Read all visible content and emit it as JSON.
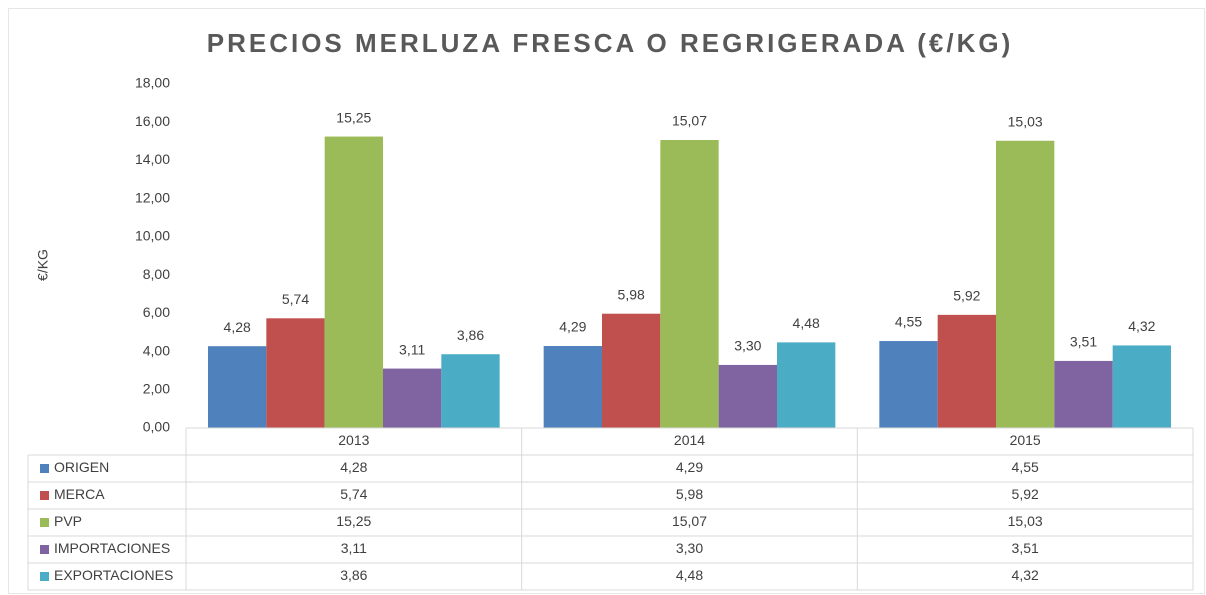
{
  "chart_data": {
    "type": "bar",
    "title": "PRECIOS MERLUZA FRESCA O REGRIGERADA (€/KG)",
    "y_label": "€/KG",
    "categories": [
      "2013",
      "2014",
      "2015"
    ],
    "series": [
      {
        "name": "ORIGEN",
        "color": "#4f81bd",
        "values": [
          4.28,
          4.29,
          4.55
        ],
        "value_labels": [
          "4,28",
          "4,29",
          "4,55"
        ]
      },
      {
        "name": "MERCA",
        "color": "#c0504d",
        "values": [
          5.74,
          5.98,
          5.92
        ],
        "value_labels": [
          "5,74",
          "5,98",
          "5,92"
        ]
      },
      {
        "name": "PVP",
        "color": "#9bbb59",
        "values": [
          15.25,
          15.07,
          15.03
        ],
        "value_labels": [
          "15,25",
          "15,07",
          "15,03"
        ]
      },
      {
        "name": "IMPORTACIONES",
        "color": "#8064a2",
        "values": [
          3.11,
          3.3,
          3.51
        ],
        "value_labels": [
          "3,11",
          "3,30",
          "3,51"
        ]
      },
      {
        "name": "EXPORTACIONES",
        "color": "#4bacc6",
        "values": [
          3.86,
          4.48,
          4.32
        ],
        "value_labels": [
          "3,86",
          "4,48",
          "4,32"
        ]
      }
    ],
    "ylim": [
      0,
      18
    ],
    "yticks": [
      {
        "value": 0,
        "label": "0,00"
      },
      {
        "value": 2,
        "label": "2,00"
      },
      {
        "value": 4,
        "label": "4,00"
      },
      {
        "value": 6,
        "label": "6,00"
      },
      {
        "value": 8,
        "label": "8,00"
      },
      {
        "value": 10,
        "label": "10,00"
      },
      {
        "value": 12,
        "label": "12,00"
      },
      {
        "value": 14,
        "label": "14,00"
      },
      {
        "value": 16,
        "label": "16,00"
      },
      {
        "value": 18,
        "label": "18,00"
      }
    ],
    "grid": false,
    "data_table": true
  }
}
